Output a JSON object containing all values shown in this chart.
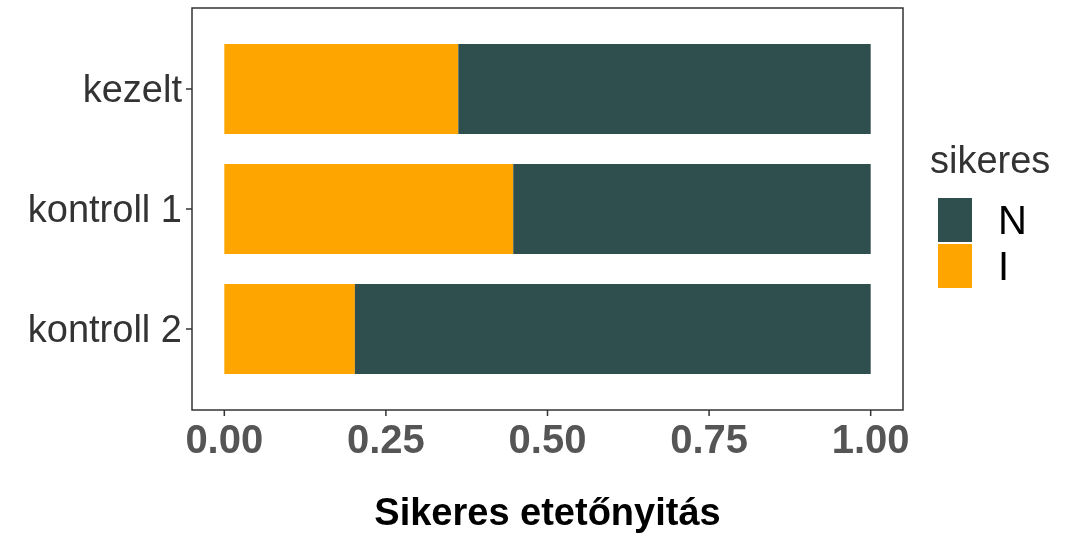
{
  "chart_data": {
    "type": "bar",
    "orientation": "horizontal",
    "stacked": true,
    "xlabel": "Sikeres etetőnyitás",
    "legend_title": "sikeres",
    "legend": "right",
    "grid": false,
    "categories": [
      "kezelt",
      "kontroll 1",
      "kontroll 2"
    ],
    "series": [
      {
        "name": "I",
        "color": "#ffa500",
        "values": [
          0.362,
          0.447,
          0.202
        ]
      },
      {
        "name": "N",
        "color": "#2f4f4f",
        "values": [
          0.638,
          0.553,
          0.798
        ]
      }
    ],
    "xlim": [
      -0.05,
      1.05
    ],
    "xticks": [
      {
        "value": 0,
        "label": "0.00"
      },
      {
        "value": 0.25,
        "label": "0.25"
      },
      {
        "value": 0.5,
        "label": "0.50"
      },
      {
        "value": 0.75,
        "label": "0.75"
      },
      {
        "value": 1,
        "label": "1.00"
      }
    ]
  }
}
